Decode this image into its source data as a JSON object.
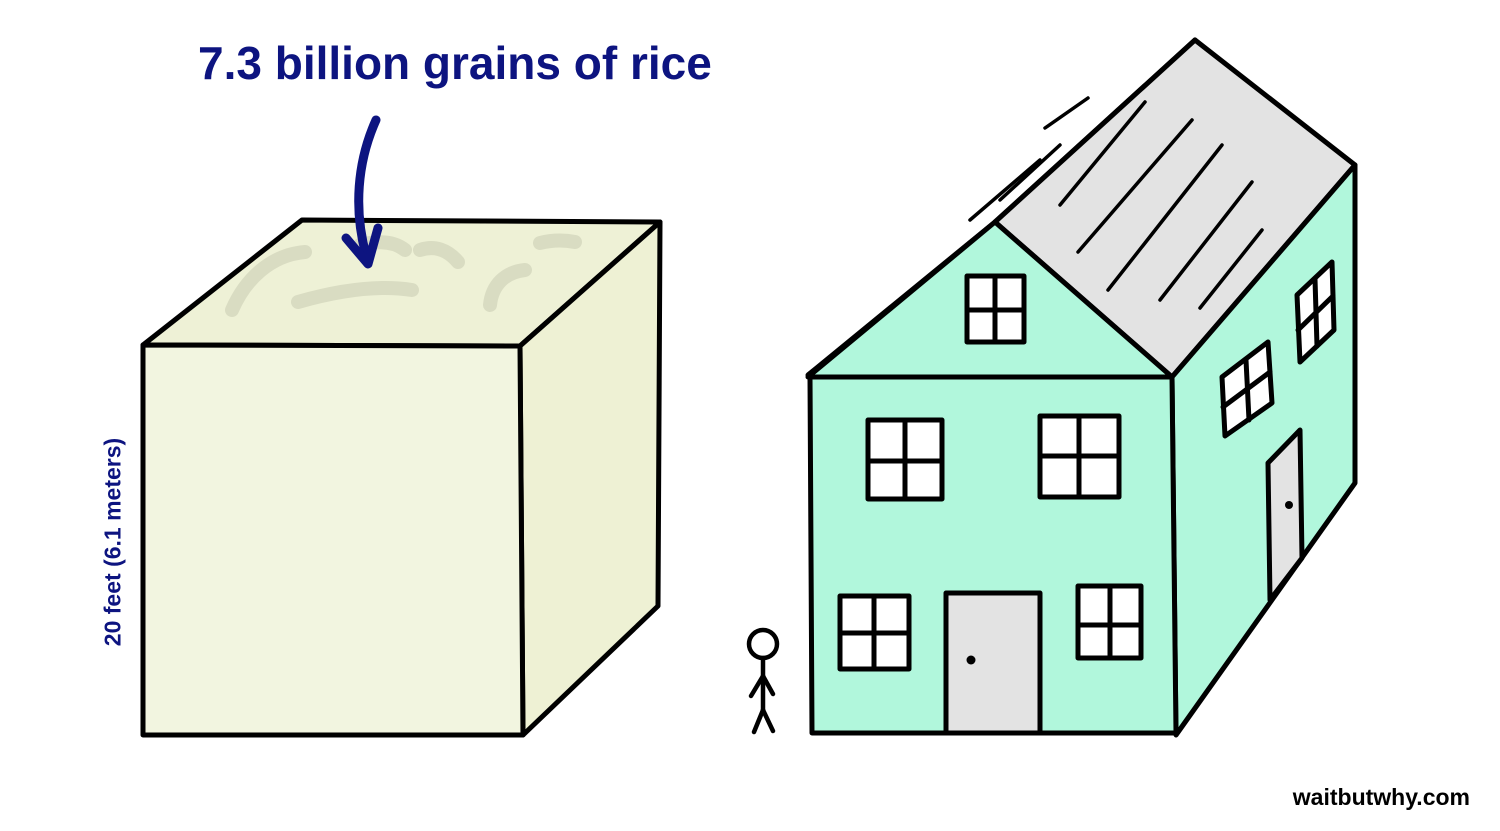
{
  "title": "7.3 billion grains of rice",
  "dimension_label": "20 feet (6.1 meters)",
  "credit": "waitbutwhy.com",
  "colors": {
    "label_text": "#0d1480",
    "arrow": "#0d1480",
    "cube_face": "#f2f5e0",
    "cube_top": "#eef1d6",
    "house_wall": "#b1f7dc",
    "roof": "#e3e3e3",
    "door": "#e3e3e3",
    "outline": "#000000"
  },
  "icons": [
    "down-arrow-icon",
    "stick-figure-icon"
  ]
}
